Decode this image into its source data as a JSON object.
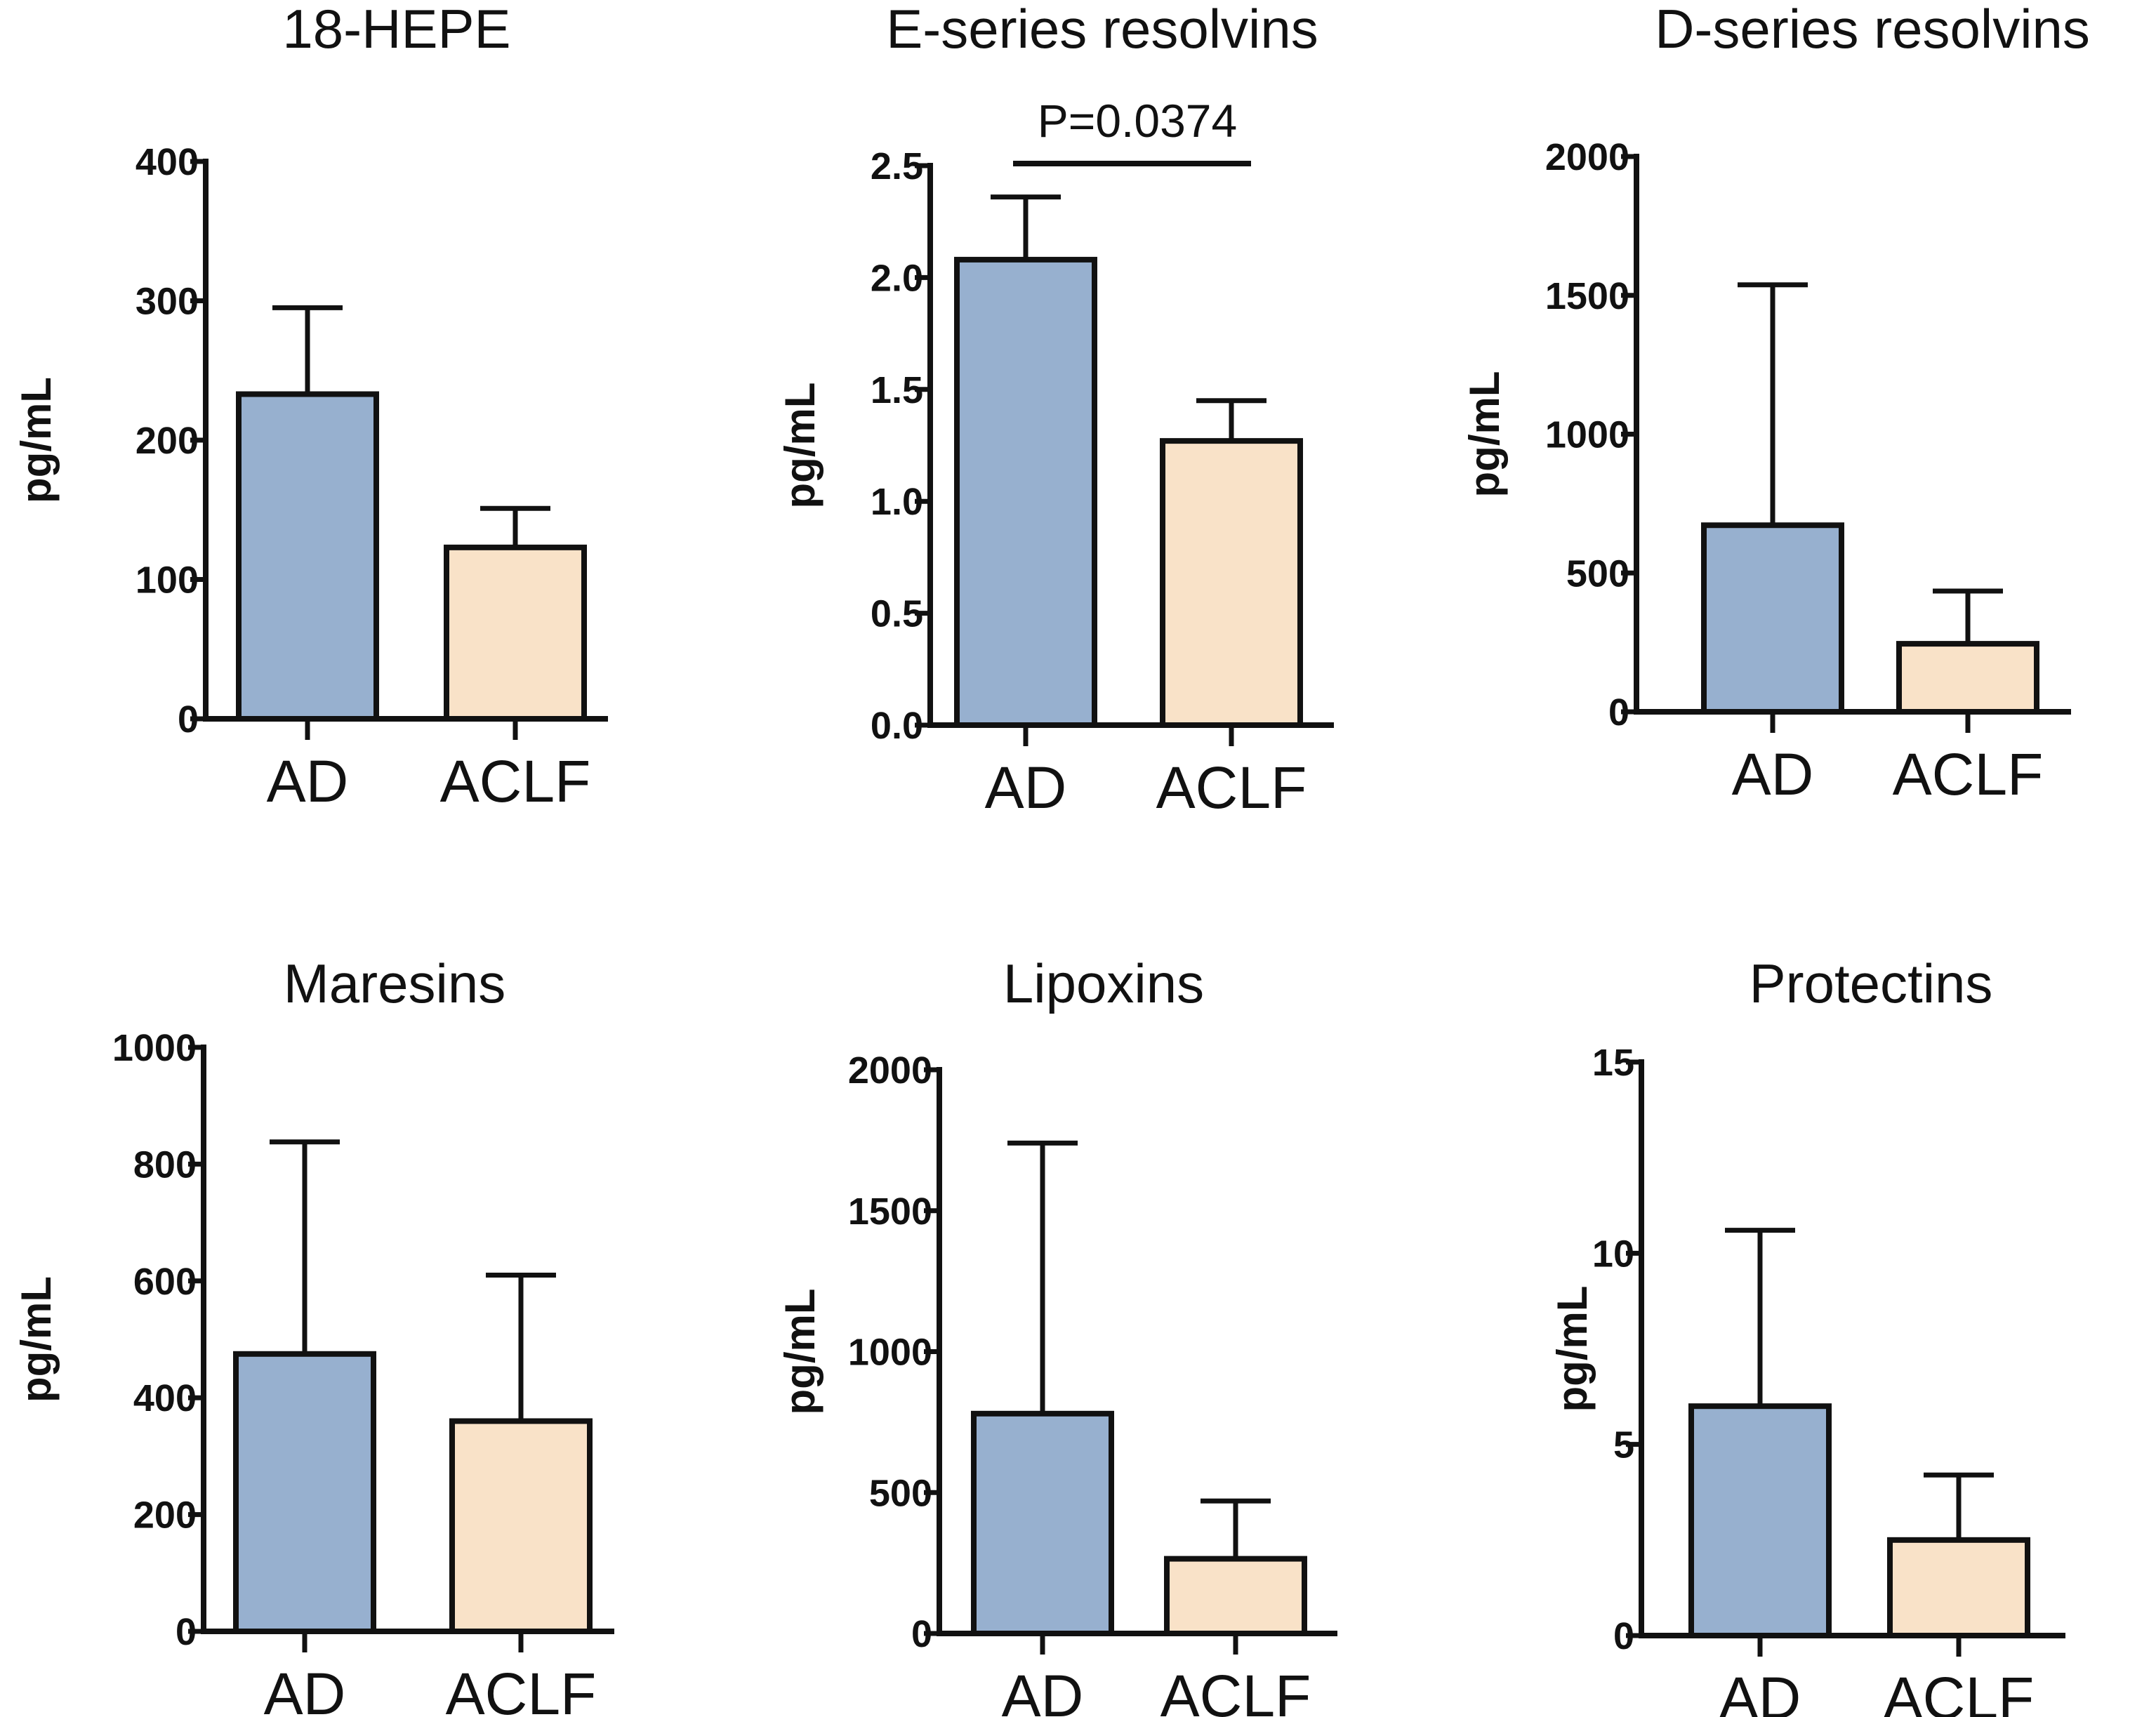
{
  "chart_data": [
    {
      "type": "bar",
      "title": "18-HEPE",
      "ylabel": "pg/mL",
      "categories": [
        "AD",
        "ACLF"
      ],
      "values": [
        233,
        123
      ],
      "errors_upper": [
        295,
        151
      ],
      "ylim": [
        0,
        400
      ],
      "yticks": [
        0,
        100,
        200,
        300,
        400
      ],
      "ytick_labels": [
        "0",
        "100",
        "200",
        "300",
        "400"
      ],
      "annotation": null
    },
    {
      "type": "bar",
      "title": "E-series resolvins",
      "ylabel": "pg/mL",
      "categories": [
        "AD",
        "ACLF"
      ],
      "values": [
        2.08,
        1.27
      ],
      "errors_upper": [
        2.36,
        1.45
      ],
      "ylim": [
        0,
        2.5
      ],
      "yticks": [
        0,
        0.5,
        1.0,
        1.5,
        2.0,
        2.5
      ],
      "ytick_labels": [
        "0.0",
        "0.5",
        "1.0",
        "1.5",
        "2.0",
        "2.5"
      ],
      "annotation": "P=0.0374"
    },
    {
      "type": "bar",
      "title": "D-series resolvins",
      "ylabel": "pg/mL",
      "categories": [
        "AD",
        "ACLF"
      ],
      "values": [
        672,
        245
      ],
      "errors_upper": [
        1538,
        435
      ],
      "ylim": [
        0,
        2000
      ],
      "yticks": [
        0,
        500,
        1000,
        1500,
        2000
      ],
      "ytick_labels": [
        "0",
        "500",
        "1000",
        "1500",
        "2000"
      ],
      "annotation": null
    },
    {
      "type": "bar",
      "title": "Maresins",
      "ylabel": "pg/mL",
      "categories": [
        "AD",
        "ACLF"
      ],
      "values": [
        475,
        360
      ],
      "errors_upper": [
        838,
        610
      ],
      "ylim": [
        0,
        1000
      ],
      "yticks": [
        0,
        200,
        400,
        600,
        800,
        1000
      ],
      "ytick_labels": [
        "0",
        "200",
        "400",
        "600",
        "800",
        "1000"
      ],
      "annotation": null
    },
    {
      "type": "bar",
      "title": "Lipoxins",
      "ylabel": "pg/mL",
      "categories": [
        "AD",
        "ACLF"
      ],
      "values": [
        780,
        265
      ],
      "errors_upper": [
        1740,
        470
      ],
      "ylim": [
        0,
        2000
      ],
      "yticks": [
        0,
        500,
        1000,
        1500,
        2000
      ],
      "ytick_labels": [
        "0",
        "500",
        "1000",
        "1500",
        "2000"
      ],
      "annotation": null
    },
    {
      "type": "bar",
      "title": "Protectins",
      "ylabel": "pg/mL",
      "categories": [
        "AD",
        "ACLF"
      ],
      "values": [
        6.0,
        2.5
      ],
      "errors_upper": [
        10.6,
        4.2
      ],
      "ylim": [
        0,
        15
      ],
      "yticks": [
        0,
        5,
        10,
        15
      ],
      "ytick_labels": [
        "0",
        "5",
        "10",
        "15"
      ],
      "annotation": null
    }
  ],
  "colors": {
    "bar_fills": [
      "#97b0cf",
      "#f9e2c8"
    ],
    "stroke": "#111111"
  }
}
